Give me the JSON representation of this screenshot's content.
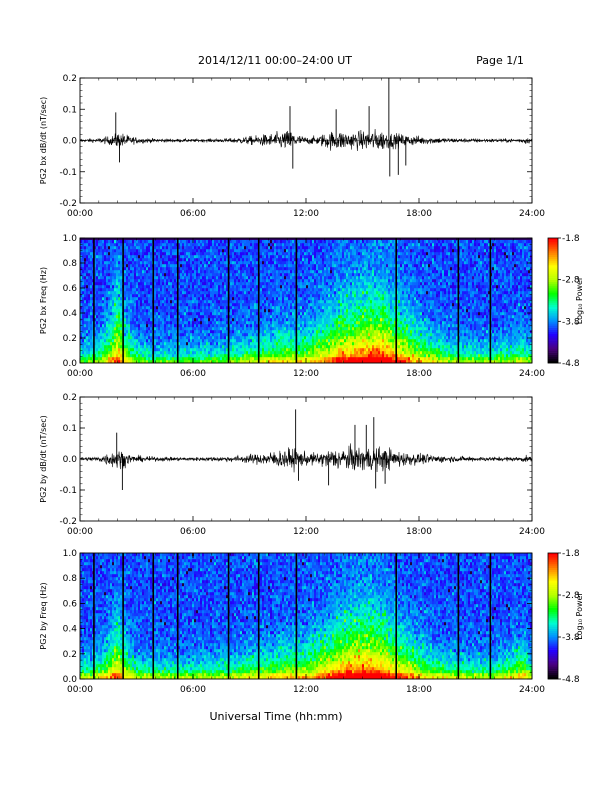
{
  "header": {
    "title": "2014/12/11  00:00–24:00 UT",
    "page": "Page 1/1"
  },
  "xlabel": "Universal Time (hh:mm)",
  "colorbar": {
    "label": "Log₁₀ Power",
    "ticks": [
      "-1.8",
      "-2.8",
      "-3.8",
      "-4.8"
    ],
    "range": [
      -4.8,
      -1.8
    ],
    "colors": [
      "#000000",
      "#4b0082",
      "#2200ff",
      "#0090ff",
      "#00ffd0",
      "#00ff00",
      "#b4ff00",
      "#ffff00",
      "#ff8000",
      "#ff0000"
    ]
  },
  "chart_data": [
    {
      "type": "line",
      "name": "bx waveform",
      "ylabel": "PG2 bx dB/dt (nT/sec)",
      "xlim": [
        0,
        24
      ],
      "ylim": [
        -0.2,
        0.2
      ],
      "xticks": [
        "00:00",
        "06:00",
        "12:00",
        "18:00",
        "24:00"
      ],
      "yticks": [
        "0.2",
        "0.1",
        "0.0",
        "-0.1",
        "-0.2"
      ],
      "envelope": {
        "x": [
          0,
          1.0,
          1.8,
          2.0,
          2.3,
          2.8,
          4,
          6,
          8,
          9.5,
          10.2,
          10.8,
          11.2,
          11.5,
          12,
          12.6,
          13.2,
          13.8,
          14.5,
          15.2,
          15.6,
          16.0,
          16.4,
          16.8,
          17.5,
          18.5,
          20,
          22,
          23.2,
          23.7,
          24
        ],
        "amp": [
          0.008,
          0.012,
          0.03,
          0.05,
          0.04,
          0.02,
          0.01,
          0.008,
          0.012,
          0.03,
          0.04,
          0.05,
          0.06,
          0.035,
          0.02,
          0.025,
          0.05,
          0.055,
          0.05,
          0.055,
          0.06,
          0.06,
          0.045,
          0.04,
          0.03,
          0.02,
          0.012,
          0.01,
          0.01,
          0.02,
          0.01
        ]
      },
      "spikes": [
        {
          "x": 1.9,
          "y": 0.09
        },
        {
          "x": 2.1,
          "y": -0.07
        },
        {
          "x": 11.15,
          "y": 0.11
        },
        {
          "x": 11.3,
          "y": -0.09
        },
        {
          "x": 13.6,
          "y": 0.1
        },
        {
          "x": 15.35,
          "y": 0.11
        },
        {
          "x": 16.4,
          "y": 0.2
        },
        {
          "x": 16.45,
          "y": -0.115
        },
        {
          "x": 16.9,
          "y": -0.11
        },
        {
          "x": 17.3,
          "y": -0.08
        }
      ]
    },
    {
      "type": "heatmap",
      "name": "bx spectrogram",
      "ylabel": "PG2 bx Freq (Hz)",
      "xlim": [
        0,
        24
      ],
      "ylim": [
        0,
        1.0
      ],
      "xticks": [
        "00:00",
        "06:00",
        "12:00",
        "18:00",
        "24:00"
      ],
      "yticks": [
        "1.0",
        "0.8",
        "0.6",
        "0.4",
        "0.2",
        "0.0"
      ],
      "data_gaps": [
        0.75,
        2.3,
        3.9,
        5.2,
        7.9,
        9.5,
        11.5,
        16.8,
        20.1,
        21.8
      ],
      "activity": {
        "x": [
          0,
          1.0,
          1.5,
          2.0,
          2.3,
          3,
          4,
          6,
          8,
          9.5,
          10.5,
          11.2,
          12,
          13,
          14,
          15,
          16,
          16.6,
          17.5,
          18.5,
          20,
          22,
          23.5,
          24
        ],
        "level": [
          0.35,
          0.4,
          0.55,
          0.75,
          0.6,
          0.4,
          0.35,
          0.35,
          0.4,
          0.5,
          0.55,
          0.6,
          0.55,
          0.7,
          0.85,
          0.9,
          0.95,
          0.85,
          0.7,
          0.55,
          0.45,
          0.4,
          0.5,
          0.4
        ],
        "freq_reach": [
          0.2,
          0.25,
          0.4,
          0.7,
          0.45,
          0.25,
          0.2,
          0.2,
          0.22,
          0.28,
          0.3,
          0.32,
          0.35,
          0.45,
          0.55,
          0.62,
          0.65,
          0.55,
          0.45,
          0.3,
          0.22,
          0.2,
          0.25,
          0.2
        ]
      },
      "colorbar_range": [
        -4.8,
        -1.8
      ]
    },
    {
      "type": "line",
      "name": "by waveform",
      "ylabel": "PG2 by dB/dt (nT/sec)",
      "xlim": [
        0,
        24
      ],
      "ylim": [
        -0.2,
        0.2
      ],
      "xticks": [
        "00:00",
        "06:00",
        "12:00",
        "18:00",
        "24:00"
      ],
      "yticks": [
        "0.2",
        "0.1",
        "0.0",
        "-0.1",
        "-0.2"
      ],
      "envelope": {
        "x": [
          0,
          1.0,
          1.7,
          2.0,
          2.3,
          2.8,
          4,
          6,
          8,
          9.5,
          10.3,
          10.9,
          11.4,
          12,
          12.6,
          13.3,
          14,
          14.8,
          15.4,
          16.0,
          16.5,
          17.0,
          17.6,
          18.5,
          20,
          22,
          23.2,
          23.7,
          24
        ],
        "amp": [
          0.01,
          0.015,
          0.045,
          0.06,
          0.045,
          0.02,
          0.012,
          0.01,
          0.015,
          0.03,
          0.045,
          0.055,
          0.06,
          0.035,
          0.035,
          0.055,
          0.065,
          0.07,
          0.07,
          0.065,
          0.06,
          0.045,
          0.035,
          0.025,
          0.015,
          0.012,
          0.012,
          0.02,
          0.01
        ]
      },
      "spikes": [
        {
          "x": 1.95,
          "y": 0.085
        },
        {
          "x": 2.25,
          "y": -0.1
        },
        {
          "x": 11.45,
          "y": 0.16
        },
        {
          "x": 11.6,
          "y": -0.07
        },
        {
          "x": 14.6,
          "y": 0.11
        },
        {
          "x": 15.2,
          "y": 0.11
        },
        {
          "x": 15.6,
          "y": 0.135
        },
        {
          "x": 15.7,
          "y": -0.095
        },
        {
          "x": 13.2,
          "y": -0.085
        },
        {
          "x": 16.2,
          "y": -0.08
        }
      ]
    },
    {
      "type": "heatmap",
      "name": "by spectrogram",
      "ylabel": "PG2 by Freq (Hz)",
      "xlim": [
        0,
        24
      ],
      "ylim": [
        0,
        1.0
      ],
      "xticks": [
        "00:00",
        "06:00",
        "12:00",
        "18:00",
        "24:00"
      ],
      "yticks": [
        "1.0",
        "0.8",
        "0.6",
        "0.4",
        "0.2",
        "0.0"
      ],
      "data_gaps": [
        0.75,
        2.3,
        3.9,
        5.2,
        7.9,
        9.5,
        11.5,
        16.8,
        20.1,
        21.8
      ],
      "activity": {
        "x": [
          0,
          1.0,
          1.5,
          2.0,
          2.3,
          3,
          4,
          6,
          8,
          9.5,
          10.5,
          11.2,
          12,
          13,
          14,
          15,
          16,
          16.6,
          17.5,
          18.5,
          20,
          22,
          23.6,
          24
        ],
        "level": [
          0.45,
          0.5,
          0.6,
          0.75,
          0.6,
          0.45,
          0.45,
          0.45,
          0.5,
          0.55,
          0.6,
          0.65,
          0.6,
          0.75,
          0.9,
          0.95,
          0.9,
          0.8,
          0.7,
          0.55,
          0.5,
          0.45,
          0.65,
          0.45
        ],
        "freq_reach": [
          0.2,
          0.25,
          0.35,
          0.55,
          0.4,
          0.25,
          0.2,
          0.2,
          0.22,
          0.28,
          0.3,
          0.32,
          0.35,
          0.45,
          0.55,
          0.62,
          0.6,
          0.5,
          0.4,
          0.28,
          0.22,
          0.2,
          0.3,
          0.2
        ]
      },
      "colorbar_range": [
        -4.8,
        -1.8
      ]
    }
  ]
}
